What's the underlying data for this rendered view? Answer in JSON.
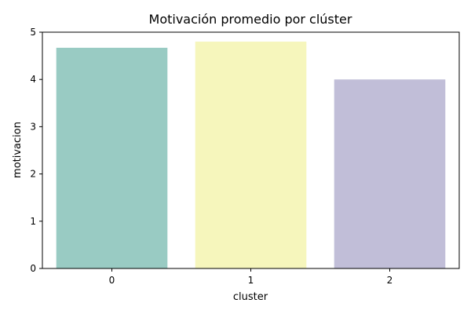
{
  "chart_data": {
    "type": "bar",
    "title": "Motivación promedio por clúster",
    "xlabel": "cluster",
    "ylabel": "motivacion",
    "categories": [
      "0",
      "1",
      "2"
    ],
    "values": [
      4.67,
      4.8,
      4.0
    ],
    "ylim": [
      0,
      5
    ],
    "yticks": [
      "0",
      "1",
      "2",
      "3",
      "4",
      "5"
    ],
    "grid": false,
    "colors": [
      "#99cbc3",
      "#f6f6bc",
      "#c1bed8"
    ]
  }
}
